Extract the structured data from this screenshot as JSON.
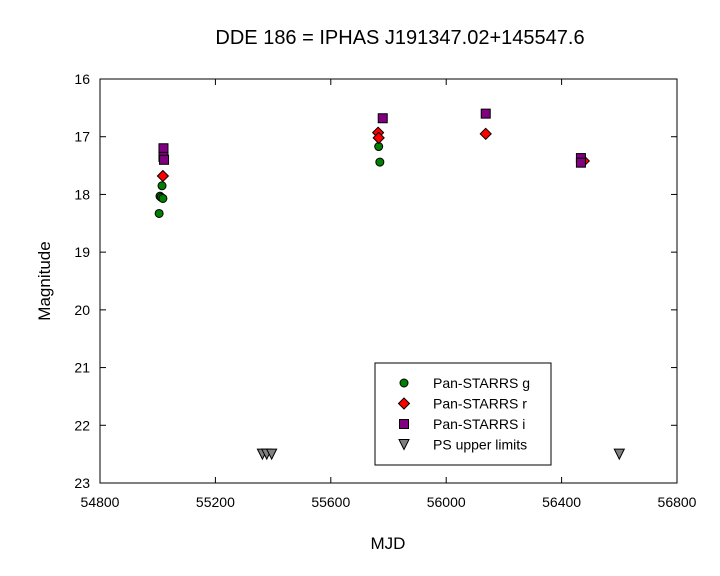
{
  "chart_data": {
    "type": "scatter",
    "title": "DDE 186 = IPHAS J191347.02+145547.6",
    "xlabel": "MJD",
    "ylabel": "Magnitude",
    "xlim": [
      54800,
      56800
    ],
    "ylim": [
      16,
      23
    ],
    "y_inverted": true,
    "x_ticks": [
      54800,
      55200,
      55600,
      56000,
      56400,
      56800
    ],
    "y_ticks": [
      16,
      17,
      18,
      19,
      20,
      21,
      22,
      23
    ],
    "grid": false,
    "legend_position": "bottom-center",
    "series": [
      {
        "name": "Pan-STARRS g",
        "marker": "circle",
        "color": "#008000",
        "points": [
          {
            "x": 55005,
            "y": 18.33
          },
          {
            "x": 55008,
            "y": 18.03
          },
          {
            "x": 55012,
            "y": 18.05
          },
          {
            "x": 55015,
            "y": 17.85
          },
          {
            "x": 55018,
            "y": 18.07
          },
          {
            "x": 55766,
            "y": 17.17
          },
          {
            "x": 55770,
            "y": 17.44
          }
        ]
      },
      {
        "name": "Pan-STARRS r",
        "marker": "diamond",
        "color": "#ff0000",
        "points": [
          {
            "x": 55018,
            "y": 17.68
          },
          {
            "x": 55764,
            "y": 16.93
          },
          {
            "x": 55766,
            "y": 17.02
          },
          {
            "x": 56137,
            "y": 16.95
          },
          {
            "x": 56477,
            "y": 17.42
          }
        ]
      },
      {
        "name": "Pan-STARRS i",
        "marker": "square",
        "color": "#800080",
        "points": [
          {
            "x": 55020,
            "y": 17.2
          },
          {
            "x": 55020,
            "y": 17.35
          },
          {
            "x": 55022,
            "y": 17.4
          },
          {
            "x": 55780,
            "y": 16.68
          },
          {
            "x": 56137,
            "y": 16.6
          },
          {
            "x": 56467,
            "y": 17.37
          },
          {
            "x": 56467,
            "y": 17.45
          }
        ]
      },
      {
        "name": "PS upper limits",
        "marker": "triangle-down",
        "color": "#808080",
        "points": [
          {
            "x": 55363,
            "y": 22.5
          },
          {
            "x": 55378,
            "y": 22.5
          },
          {
            "x": 55395,
            "y": 22.5
          },
          {
            "x": 56600,
            "y": 22.5
          }
        ]
      }
    ]
  }
}
